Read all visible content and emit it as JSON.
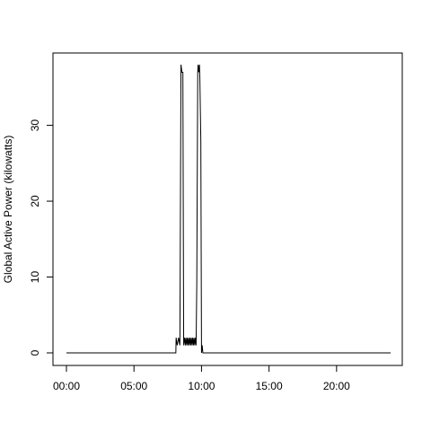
{
  "chart_data": {
    "type": "line",
    "title": "",
    "xlabel": "",
    "ylabel": "Global Active Power (kilowatts)",
    "x_unit": "hours since 00:00",
    "xlim": [
      0,
      24
    ],
    "ylim": [
      0,
      38
    ],
    "x_ticks": [
      {
        "value": 0,
        "label": "00:00"
      },
      {
        "value": 5,
        "label": "05:00"
      },
      {
        "value": 10,
        "label": "10:00"
      },
      {
        "value": 15,
        "label": "15:00"
      },
      {
        "value": 20,
        "label": "20:00"
      }
    ],
    "y_ticks": [
      0,
      10,
      20,
      30
    ],
    "grid": false,
    "legend": "none",
    "series": [
      {
        "color": "#000000",
        "points": [
          [
            0,
            0
          ],
          [
            8.1,
            0
          ],
          [
            8.12,
            2
          ],
          [
            8.2,
            1
          ],
          [
            8.3,
            2
          ],
          [
            8.4,
            1
          ],
          [
            8.48,
            38
          ],
          [
            8.55,
            37
          ],
          [
            8.62,
            37
          ],
          [
            8.68,
            1
          ],
          [
            8.75,
            2
          ],
          [
            8.8,
            1
          ],
          [
            8.85,
            2
          ],
          [
            8.9,
            1
          ],
          [
            8.95,
            2
          ],
          [
            9.0,
            1
          ],
          [
            9.05,
            2
          ],
          [
            9.1,
            1
          ],
          [
            9.15,
            2
          ],
          [
            9.2,
            1
          ],
          [
            9.25,
            2
          ],
          [
            9.3,
            1
          ],
          [
            9.35,
            2
          ],
          [
            9.4,
            1
          ],
          [
            9.45,
            2
          ],
          [
            9.5,
            1
          ],
          [
            9.55,
            2
          ],
          [
            9.6,
            1
          ],
          [
            9.65,
            9
          ],
          [
            9.72,
            37
          ],
          [
            9.75,
            38
          ],
          [
            9.8,
            37
          ],
          [
            9.85,
            38
          ],
          [
            9.88,
            36
          ],
          [
            9.95,
            28
          ],
          [
            10.0,
            0
          ],
          [
            10.05,
            1
          ],
          [
            10.1,
            0
          ],
          [
            24,
            0
          ]
        ]
      }
    ]
  }
}
